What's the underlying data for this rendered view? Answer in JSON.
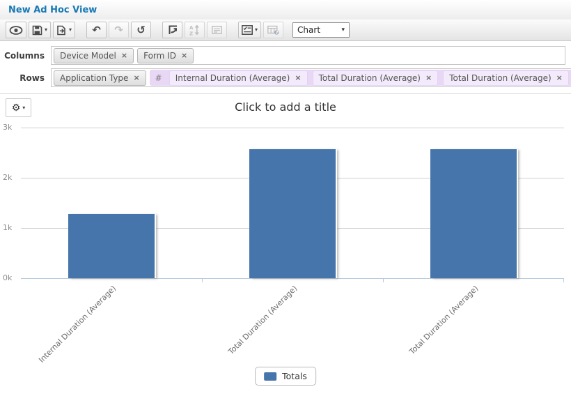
{
  "window": {
    "title": "New Ad Hoc View"
  },
  "toolbar": {
    "chart_type_selected": "Chart",
    "caret": "▾",
    "icons": {
      "undo": "↶",
      "redo": "↷",
      "reset": "↺",
      "gear": "⚙"
    }
  },
  "fields": {
    "columns_label": "Columns",
    "rows_label": "Rows",
    "columns_tokens": [
      "Device Model",
      "Form ID"
    ],
    "rows_tokens": [
      "Application Type"
    ],
    "measures_prefix": "#",
    "measures_tokens": [
      "Internal Duration (Average)",
      "Total Duration (Average)",
      "Total Duration (Average)"
    ],
    "remove_glyph": "×"
  },
  "chart_data": {
    "type": "bar",
    "title": "Click to add a title",
    "categories": [
      "Internal Duration (Average)",
      "Total Duration (Average)",
      "Total Duration (Average)"
    ],
    "series": [
      {
        "name": "Totals",
        "values": [
          1280,
          2570,
          2570
        ]
      }
    ],
    "ylim": [
      0,
      3000
    ],
    "ytick_labels": [
      "0k",
      "1k",
      "2k",
      "3k"
    ],
    "xlabel": "",
    "ylabel": "",
    "grid": true,
    "legend_position": "bottom",
    "bar_color": "#4675ab"
  },
  "colors": {
    "accent_blue": "#1779b5",
    "bar_blue": "#4675ab",
    "measures_bg": "#e8d8f6",
    "measure_chip_bg": "#f3ebfb",
    "axis_line": "#b7cbde"
  }
}
